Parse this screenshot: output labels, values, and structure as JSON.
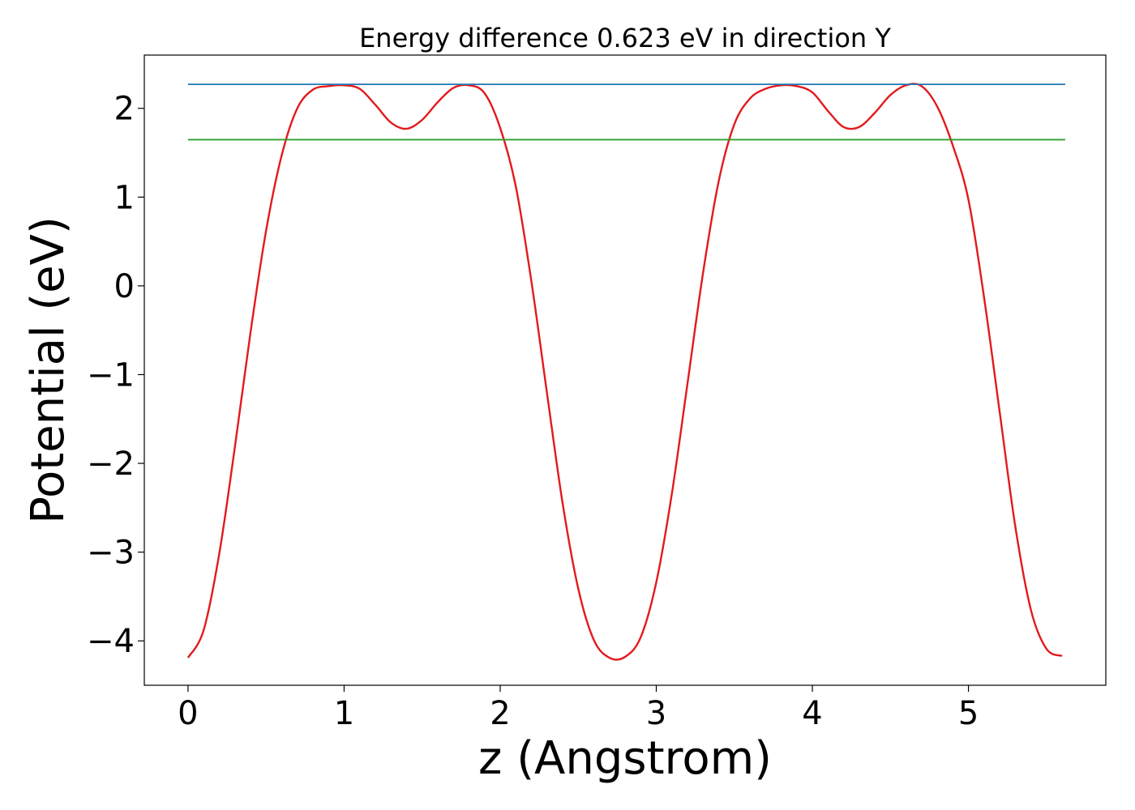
{
  "chart_data": {
    "type": "line",
    "title": "Energy difference 0.623 eV in direction Y",
    "xlabel": "z (Angstrom)",
    "ylabel": "Potential (eV)",
    "xlim": [
      -0.28,
      5.88
    ],
    "ylim": [
      -4.5,
      2.6
    ],
    "xticks": [
      0,
      1,
      2,
      3,
      4,
      5
    ],
    "yticks": [
      -4,
      -3,
      -2,
      -1,
      0,
      1,
      2
    ],
    "xtick_labels": [
      "0",
      "1",
      "2",
      "3",
      "4",
      "5"
    ],
    "ytick_labels": [
      "−4",
      "−3",
      "−2",
      "−1",
      "0",
      "1",
      "2"
    ],
    "grid": false,
    "legend": "none",
    "series": [
      {
        "kind": "curve",
        "color": "#e31a1c",
        "x": [
          0.0,
          0.1,
          0.2,
          0.3,
          0.4,
          0.5,
          0.6,
          0.7,
          0.8,
          0.9,
          1.0,
          1.1,
          1.2,
          1.3,
          1.4,
          1.5,
          1.6,
          1.7,
          1.8,
          1.9,
          2.0,
          2.1,
          2.2,
          2.3,
          2.4,
          2.5,
          2.6,
          2.7,
          2.8,
          2.9,
          3.0,
          3.1,
          3.2,
          3.3,
          3.4,
          3.5,
          3.6,
          3.7,
          3.8,
          3.9,
          4.0,
          4.1,
          4.2,
          4.3,
          4.4,
          4.5,
          4.6,
          4.7,
          4.8,
          4.9,
          5.0,
          5.1,
          5.2,
          5.3,
          5.4,
          5.5,
          5.6
        ],
        "y": [
          -4.19,
          -3.88,
          -3.02,
          -1.82,
          -0.53,
          0.62,
          1.47,
          2.0,
          2.21,
          2.25,
          2.26,
          2.22,
          2.04,
          1.84,
          1.77,
          1.87,
          2.07,
          2.23,
          2.26,
          2.17,
          1.78,
          1.12,
          0.05,
          -1.21,
          -2.45,
          -3.41,
          -3.99,
          -4.19,
          -4.18,
          -3.96,
          -3.34,
          -2.34,
          -1.1,
          0.15,
          1.18,
          1.82,
          2.11,
          2.22,
          2.26,
          2.25,
          2.18,
          1.97,
          1.79,
          1.79,
          1.95,
          2.15,
          2.26,
          2.25,
          2.02,
          1.58,
          0.97,
          -0.13,
          -1.42,
          -2.71,
          -3.65,
          -4.09,
          -4.17
        ]
      },
      {
        "kind": "hline",
        "color": "#1f77b4",
        "x": [
          0.0,
          5.62
        ],
        "y": [
          2.27,
          2.27
        ]
      },
      {
        "kind": "hline",
        "color": "#2ca02c",
        "x": [
          0.0,
          5.62
        ],
        "y": [
          1.647,
          1.647
        ]
      }
    ]
  }
}
